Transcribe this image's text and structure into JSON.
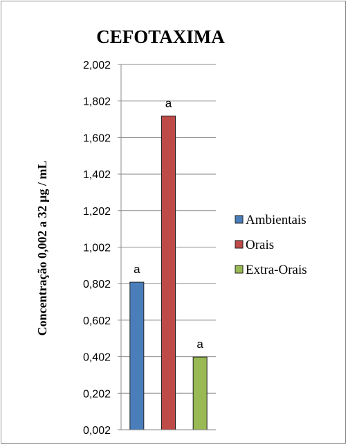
{
  "chart_data": {
    "type": "bar",
    "title": "CEFOTAXIMA",
    "ylabel": "Concentração 0,002  a  32 µg / mL",
    "xlabel": "",
    "ylim": [
      0.002,
      2.002
    ],
    "yticks": [
      "0,002",
      "0,202",
      "0,402",
      "0,602",
      "0,802",
      "1,002",
      "1,202",
      "1,402",
      "1,602",
      "1,802",
      "2,002"
    ],
    "grid": true,
    "legend_position": "right",
    "series": [
      {
        "name": "Ambientais",
        "value": 0.81,
        "color": "#4a7ebb",
        "label": "a"
      },
      {
        "name": "Orais",
        "value": 1.72,
        "color": "#be4b48",
        "label": "a"
      },
      {
        "name": "Extra-Orais",
        "value": 0.4,
        "color": "#98b954",
        "label": "a"
      }
    ]
  }
}
